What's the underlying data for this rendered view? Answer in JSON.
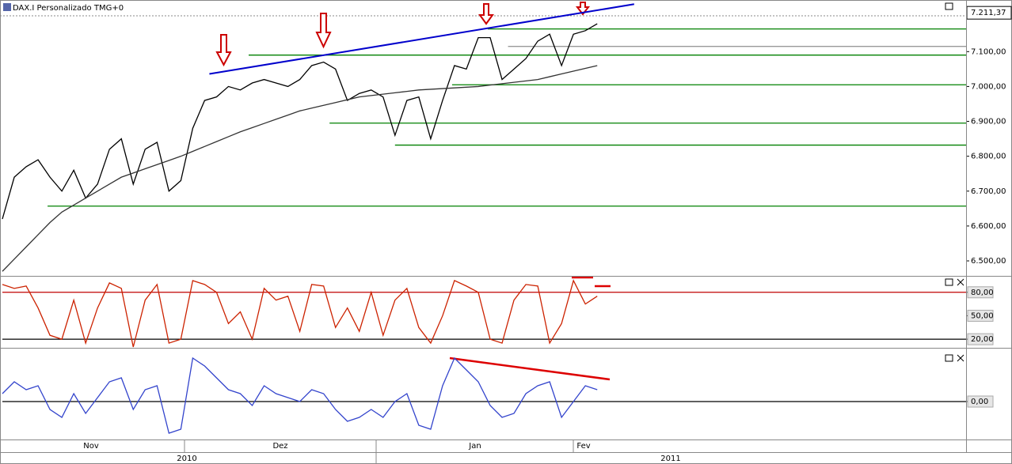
{
  "chart_data": [
    {
      "type": "line",
      "title": "DAX.I Personalizado TMG+0",
      "x": [
        0,
        1,
        2,
        3,
        4,
        5,
        6,
        7,
        8,
        9,
        10,
        11,
        12,
        13,
        14,
        15,
        16,
        17,
        18,
        19,
        20,
        21,
        22,
        23,
        24,
        25,
        26,
        27,
        28,
        29,
        30,
        31,
        32,
        33,
        34,
        35,
        36,
        37,
        38,
        39,
        40,
        41,
        42,
        43,
        44,
        45,
        46,
        47,
        48,
        49,
        50
      ],
      "xlim": [
        0,
        81
      ],
      "ylim": [
        6457,
        7248
      ],
      "yticks": [
        {
          "value": 6500,
          "label": "6.500,00"
        },
        {
          "value": 6600,
          "label": "6.600,00"
        },
        {
          "value": 6700,
          "label": "6.700,00"
        },
        {
          "value": 6800,
          "label": "6.800,00"
        },
        {
          "value": 6900,
          "label": "6.900,00"
        },
        {
          "value": 7000,
          "label": "7.000,00"
        },
        {
          "value": 7100,
          "label": "7.100,00"
        }
      ],
      "last_value": {
        "value": 7211.37,
        "label": "7.211,37"
      },
      "series": [
        {
          "color": "#000000",
          "values": [
            6620,
            6740,
            6770,
            6790,
            6740,
            6700,
            6760,
            6680,
            6720,
            6820,
            6850,
            6720,
            6820,
            6840,
            6700,
            6730,
            6880,
            6960,
            6970,
            7000,
            6990,
            7010,
            7020,
            7010,
            7000,
            7020,
            7060,
            7070,
            7050,
            6960,
            6980,
            6990,
            6970,
            6860,
            6960,
            6970,
            6850,
            6960,
            7060,
            7050,
            7140,
            7140,
            7020,
            7050,
            7080,
            7130,
            7150,
            7060,
            7150,
            7160,
            7180
          ]
        },
        {
          "color": "#333333",
          "values": [
            6470,
            6505,
            6540,
            6575,
            6610,
            6640,
            6660,
            6680,
            6700,
            6720,
            6740,
            6752,
            6764,
            6776,
            6788,
            6800,
            6814,
            6828,
            6842,
            6856,
            6870,
            6882,
            6894,
            6906,
            6918,
            6930,
            6938,
            6946,
            6954,
            6962,
            6970,
            6974,
            6978,
            6982,
            6986,
            6990,
            6992,
            6994,
            6996,
            6998,
            7000,
            7004,
            7008,
            7012,
            7016,
            7020,
            7028,
            7036,
            7044,
            7052,
            7060
          ]
        }
      ],
      "levels": [
        {
          "value": 7165,
          "start": 40.8,
          "color": "#008000"
        },
        {
          "value": 7090,
          "start": 20.7,
          "color": "#008000"
        },
        {
          "value": 7115,
          "start": 42.5,
          "color": "#999999"
        },
        {
          "value": 7005,
          "start": 37.8,
          "color": "#008000"
        },
        {
          "value": 6895,
          "start": 27.5,
          "color": "#008000"
        },
        {
          "value": 6832,
          "start": 33,
          "color": "#008000"
        },
        {
          "value": 6657,
          "start": 3.8,
          "color": "#008000"
        }
      ],
      "trendline": {
        "x": [
          17.4,
          53.1
        ],
        "y": [
          7036,
          7236
        ],
        "color": "#0000cc"
      },
      "months": [
        "Nov",
        "Dez",
        "Jan",
        "Fev"
      ],
      "years": [
        "2010",
        "2011"
      ]
    },
    {
      "type": "line",
      "x": [
        0,
        1,
        2,
        3,
        4,
        5,
        6,
        7,
        8,
        9,
        10,
        11,
        12,
        13,
        14,
        15,
        16,
        17,
        18,
        19,
        20,
        21,
        22,
        23,
        24,
        25,
        26,
        27,
        28,
        29,
        30,
        31,
        32,
        33,
        34,
        35,
        36,
        37,
        38,
        39,
        40,
        41,
        42,
        43,
        44,
        45,
        46,
        47,
        48,
        49,
        50
      ],
      "xlim": [
        0,
        81
      ],
      "ylim": [
        9,
        100
      ],
      "yticks": [
        {
          "value": 20,
          "label": "20,00"
        },
        {
          "value": 50,
          "label": "50,00"
        },
        {
          "value": 80,
          "label": "80,00"
        }
      ],
      "levels": [
        {
          "value": 80,
          "start": 0,
          "color": "#c00000"
        },
        {
          "value": 20,
          "start": 0,
          "color": "#000000"
        }
      ],
      "series": [
        {
          "color": "#cc2200",
          "values": [
            90,
            85,
            88,
            60,
            25,
            20,
            70,
            15,
            60,
            92,
            85,
            10,
            70,
            90,
            15,
            20,
            95,
            90,
            80,
            40,
            55,
            20,
            85,
            70,
            75,
            30,
            90,
            88,
            35,
            60,
            30,
            80,
            25,
            70,
            85,
            35,
            15,
            50,
            95,
            88,
            80,
            20,
            15,
            70,
            90,
            88,
            15,
            40,
            95,
            65,
            75
          ]
        }
      ]
    },
    {
      "type": "line",
      "x": [
        0,
        1,
        2,
        3,
        4,
        5,
        6,
        7,
        8,
        9,
        10,
        11,
        12,
        13,
        14,
        15,
        16,
        17,
        18,
        19,
        20,
        21,
        22,
        23,
        24,
        25,
        26,
        27,
        28,
        29,
        30,
        31,
        32,
        33,
        34,
        35,
        36,
        37,
        38,
        39,
        40,
        41,
        42,
        43,
        44,
        45,
        46,
        47,
        48,
        49,
        50
      ],
      "xlim": [
        0,
        81
      ],
      "ylim": [
        -48,
        67
      ],
      "yticks": [
        {
          "value": 0,
          "label": "0,00"
        }
      ],
      "levels": [
        {
          "value": 0,
          "start": 0,
          "color": "#000000"
        }
      ],
      "series": [
        {
          "color": "#3344cc",
          "values": [
            10,
            25,
            15,
            20,
            -10,
            -20,
            10,
            -15,
            5,
            25,
            30,
            -10,
            15,
            20,
            -40,
            -35,
            55,
            45,
            30,
            15,
            10,
            -5,
            20,
            10,
            5,
            0,
            15,
            10,
            -10,
            -25,
            -20,
            -10,
            -20,
            0,
            10,
            -30,
            -35,
            20,
            55,
            40,
            25,
            -5,
            -20,
            -15,
            10,
            20,
            25,
            -20,
            0,
            20,
            15
          ]
        }
      ]
    }
  ]
}
